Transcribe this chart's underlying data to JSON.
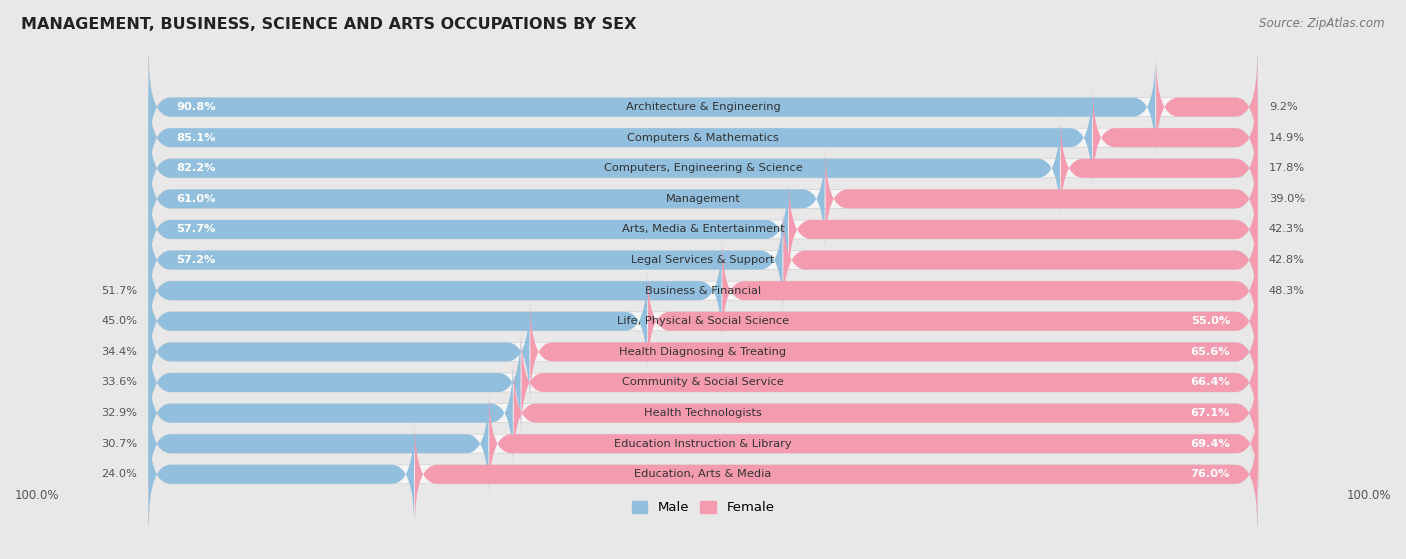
{
  "title": "MANAGEMENT, BUSINESS, SCIENCE AND ARTS OCCUPATIONS BY SEX",
  "source": "Source: ZipAtlas.com",
  "categories": [
    "Architecture & Engineering",
    "Computers & Mathematics",
    "Computers, Engineering & Science",
    "Management",
    "Arts, Media & Entertainment",
    "Legal Services & Support",
    "Business & Financial",
    "Life, Physical & Social Science",
    "Health Diagnosing & Treating",
    "Community & Social Service",
    "Health Technologists",
    "Education Instruction & Library",
    "Education, Arts & Media"
  ],
  "male_pct": [
    90.8,
    85.1,
    82.2,
    61.0,
    57.7,
    57.2,
    51.7,
    45.0,
    34.4,
    33.6,
    32.9,
    30.7,
    24.0
  ],
  "female_pct": [
    9.2,
    14.9,
    17.8,
    39.0,
    42.3,
    42.8,
    48.3,
    55.0,
    65.6,
    66.4,
    67.1,
    69.4,
    76.0
  ],
  "male_color": "#92bfdd",
  "female_color": "#f59bb0",
  "bg_color": "#e8e8e8",
  "row_bg_color": "#f5f5f5",
  "bar_height": 0.62,
  "legend_male": "Male",
  "legend_female": "Female"
}
